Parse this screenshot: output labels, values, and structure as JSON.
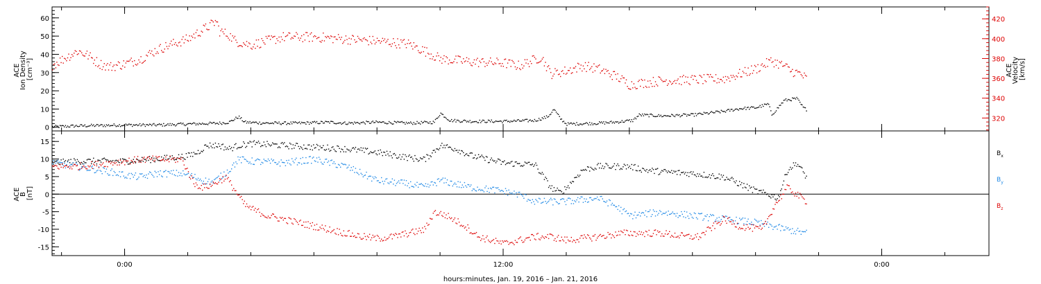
{
  "chart_data": [
    {
      "type": "scatter",
      "panel": "top",
      "left_axis": {
        "label_lines": [
          "ACE",
          "Ion Density",
          "[cm⁻³]"
        ],
        "ylim": [
          -2,
          66
        ],
        "ticks": [
          0,
          10,
          20,
          30,
          40,
          50,
          60
        ],
        "color": "#000000"
      },
      "right_axis": {
        "label_lines": [
          "ACE",
          "Velocity",
          "[km/s]"
        ],
        "ylim": [
          307,
          432
        ],
        "ticks": [
          320,
          340,
          360,
          380,
          400,
          420
        ],
        "color": "#dd0000"
      },
      "series": [
        {
          "axis": "left",
          "color": "#000000",
          "knots": [
            [
              -2.3,
              0.5
            ],
            [
              -1.5,
              1
            ],
            [
              0,
              1.5
            ],
            [
              1,
              1.5
            ],
            [
              2,
              2
            ],
            [
              3,
              2.5
            ],
            [
              3.3,
              3
            ],
            [
              3.6,
              6
            ],
            [
              3.8,
              3
            ],
            [
              4.5,
              2.5
            ],
            [
              5.5,
              2.5
            ],
            [
              6.5,
              3
            ],
            [
              7,
              2.5
            ],
            [
              8,
              3
            ],
            [
              9,
              2.5
            ],
            [
              9.8,
              3
            ],
            [
              10,
              8
            ],
            [
              10.3,
              4
            ],
            [
              11,
              3.5
            ],
            [
              12,
              3.5
            ],
            [
              13,
              4
            ],
            [
              13.4,
              6
            ],
            [
              13.6,
              10
            ],
            [
              13.8,
              5
            ],
            [
              14,
              2
            ],
            [
              15,
              2.5
            ],
            [
              15.5,
              3
            ],
            [
              16.1,
              4
            ],
            [
              16.3,
              7
            ],
            [
              17,
              6.5
            ],
            [
              18,
              7
            ],
            [
              18.5,
              8
            ],
            [
              19,
              9
            ],
            [
              19.5,
              10.5
            ],
            [
              20,
              11
            ],
            [
              20.4,
              13
            ],
            [
              20.5,
              7
            ],
            [
              20.9,
              15
            ],
            [
              21.3,
              16
            ],
            [
              21.5,
              11
            ],
            [
              21.6,
              10
            ]
          ]
        },
        {
          "axis": "right",
          "color": "#dd0000",
          "knots": [
            [
              -2.3,
              374
            ],
            [
              -2,
              379
            ],
            [
              -1.5,
              388
            ],
            [
              -1.2,
              384
            ],
            [
              -0.8,
              375
            ],
            [
              -0.5,
              372
            ],
            [
              0,
              375
            ],
            [
              0.5,
              380
            ],
            [
              1,
              389
            ],
            [
              1.5,
              395
            ],
            [
              2,
              400
            ],
            [
              2.5,
              410
            ],
            [
              2.9,
              418
            ],
            [
              3,
              408
            ],
            [
              3.3,
              404
            ],
            [
              3.5,
              398
            ],
            [
              4,
              394
            ],
            [
              4.5,
              398
            ],
            [
              5,
              402
            ],
            [
              6,
              402
            ],
            [
              7,
              400
            ],
            [
              8,
              398
            ],
            [
              9,
              395
            ],
            [
              9.5,
              388
            ],
            [
              10,
              380
            ],
            [
              11,
              377
            ],
            [
              12,
              376
            ],
            [
              12.5,
              373
            ],
            [
              13.2,
              382
            ],
            [
              13.5,
              365
            ],
            [
              14,
              368
            ],
            [
              14.5,
              373
            ],
            [
              15,
              370
            ],
            [
              15.6,
              362
            ],
            [
              16,
              354
            ],
            [
              17,
              358
            ],
            [
              18,
              359
            ],
            [
              19,
              360
            ],
            [
              19.5,
              365
            ],
            [
              20,
              370
            ],
            [
              20.5,
              378
            ],
            [
              20.9,
              373
            ],
            [
              21.1,
              368
            ],
            [
              21.4,
              365
            ],
            [
              21.6,
              360
            ]
          ]
        }
      ]
    },
    {
      "type": "scatter",
      "panel": "bottom",
      "left_axis": {
        "label_lines": [
          "ACE",
          "B",
          "[nT]"
        ],
        "ylim": [
          -17.5,
          18
        ],
        "ticks": [
          -15,
          -10,
          -5,
          0,
          5,
          10,
          15
        ],
        "color": "#000000"
      },
      "zero_line": true,
      "series": [
        {
          "name": "B",
          "subscript": "x",
          "color": "#000000",
          "knots": [
            [
              -2.3,
              9
            ],
            [
              -1.5,
              9.5
            ],
            [
              0,
              9.5
            ],
            [
              0.8,
              10
            ],
            [
              1.5,
              10.5
            ],
            [
              2,
              11
            ],
            [
              2.3,
              12
            ],
            [
              2.6,
              14
            ],
            [
              3,
              14
            ],
            [
              3.3,
              13
            ],
            [
              3.6,
              14
            ],
            [
              4,
              14.5
            ],
            [
              5,
              14
            ],
            [
              6,
              13.5
            ],
            [
              7,
              13
            ],
            [
              8,
              12
            ],
            [
              9,
              10.5
            ],
            [
              9.5,
              10
            ],
            [
              10,
              14
            ],
            [
              10.5,
              13
            ],
            [
              11,
              11
            ],
            [
              12,
              9
            ],
            [
              13,
              8.5
            ],
            [
              13.5,
              2
            ],
            [
              13.8,
              0.5
            ],
            [
              14,
              2
            ],
            [
              14.5,
              7
            ],
            [
              15,
              8
            ],
            [
              16,
              8
            ],
            [
              16.5,
              7
            ],
            [
              17,
              6.5
            ],
            [
              18,
              6
            ],
            [
              19,
              5
            ],
            [
              19.5,
              3
            ],
            [
              20,
              1
            ],
            [
              20.4,
              0
            ],
            [
              20.7,
              -1
            ],
            [
              21,
              7
            ],
            [
              21.3,
              9
            ],
            [
              21.6,
              5
            ]
          ]
        },
        {
          "name": "B",
          "subscript": "y",
          "color": "#1e88e5",
          "knots": [
            [
              -2.3,
              9
            ],
            [
              -1.5,
              8
            ],
            [
              -0.5,
              6.5
            ],
            [
              0,
              5.5
            ],
            [
              0.5,
              5
            ],
            [
              1,
              6
            ],
            [
              1.8,
              6
            ],
            [
              2.2,
              5
            ],
            [
              2.5,
              4
            ],
            [
              2.8,
              3.5
            ],
            [
              3.3,
              7
            ],
            [
              3.6,
              10
            ],
            [
              4,
              9.5
            ],
            [
              5,
              9
            ],
            [
              6,
              10
            ],
            [
              7,
              8
            ],
            [
              7.5,
              6
            ],
            [
              8,
              4
            ],
            [
              9,
              3
            ],
            [
              9.5,
              2
            ],
            [
              10,
              4
            ],
            [
              11,
              2
            ],
            [
              12,
              1
            ],
            [
              12.5,
              0
            ],
            [
              13,
              -2
            ],
            [
              14,
              -2
            ],
            [
              15,
              -1
            ],
            [
              15.5,
              -3
            ],
            [
              16,
              -6
            ],
            [
              17,
              -5
            ],
            [
              18,
              -6
            ],
            [
              19,
              -7
            ],
            [
              20,
              -8
            ],
            [
              20.5,
              -9
            ],
            [
              21,
              -10
            ],
            [
              21.6,
              -11
            ]
          ]
        },
        {
          "name": "B",
          "subscript": "z",
          "color": "#dd0000",
          "knots": [
            [
              -2.3,
              8
            ],
            [
              -1.5,
              8
            ],
            [
              -0.5,
              9
            ],
            [
              0.5,
              10
            ],
            [
              1,
              10
            ],
            [
              1.8,
              10
            ],
            [
              2.2,
              3
            ],
            [
              2.5,
              2
            ],
            [
              2.8,
              3
            ],
            [
              3.2,
              5
            ],
            [
              3.5,
              1
            ],
            [
              3.8,
              -3
            ],
            [
              4,
              -4
            ],
            [
              4.5,
              -6
            ],
            [
              5,
              -7
            ],
            [
              5.5,
              -8
            ],
            [
              6,
              -9
            ],
            [
              7,
              -11
            ],
            [
              7.5,
              -12
            ],
            [
              8,
              -12.5
            ],
            [
              8.5,
              -12
            ],
            [
              9.5,
              -10
            ],
            [
              9.8,
              -5
            ],
            [
              10.2,
              -6
            ],
            [
              10.8,
              -9
            ],
            [
              11.2,
              -12
            ],
            [
              12,
              -14
            ],
            [
              12.5,
              -13
            ],
            [
              13,
              -12
            ],
            [
              13.5,
              -12
            ],
            [
              14,
              -13
            ],
            [
              15,
              -12
            ],
            [
              15.8,
              -11
            ],
            [
              16.5,
              -11
            ],
            [
              17,
              -11
            ],
            [
              17.8,
              -12
            ],
            [
              18.2,
              -12
            ],
            [
              18.5,
              -10
            ],
            [
              19,
              -7
            ],
            [
              19.5,
              -9
            ],
            [
              20.2,
              -10
            ],
            [
              20.6,
              -3
            ],
            [
              21,
              2
            ],
            [
              21.3,
              0
            ],
            [
              21.6,
              -2
            ]
          ]
        }
      ]
    }
  ],
  "x_axis": {
    "label": "hours:minutes, Jan. 19, 2016 – Jan. 21, 2016",
    "range_hours": [
      -2.3,
      27.4
    ],
    "major_ticks": [
      {
        "hour": 0,
        "label": "0:00"
      },
      {
        "hour": 12,
        "label": "12:00"
      },
      {
        "hour": 24,
        "label": "0:00"
      }
    ],
    "minor_every_hours": 2
  }
}
